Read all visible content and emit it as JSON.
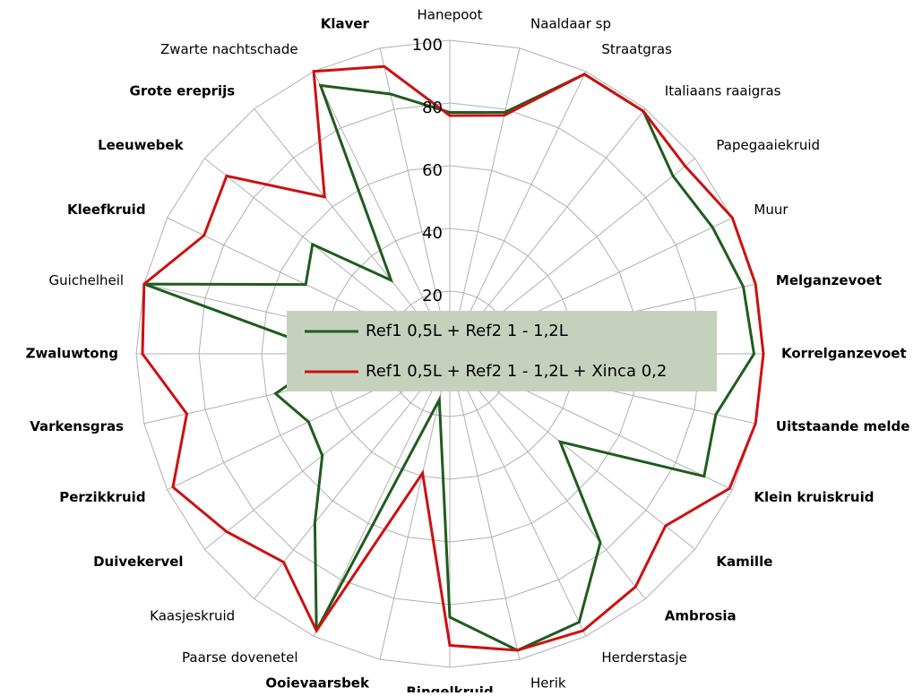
{
  "chart_data": {
    "type": "radar",
    "categories": [
      "Hanepoot",
      "Naaldaar sp",
      "Straatgras",
      "Italiaans raaigras",
      "Papegaaiekruid",
      "Muur",
      "Melganzevoet",
      "Korrelganzevoet",
      "Uitstaande melde",
      "Klein kruiskruid",
      "Kamille",
      "Ambrosia",
      "Herderstasje",
      "Herik",
      "Bingelkruid",
      "Ooievaarsbek",
      "Paarse dovenetel",
      "Kaasjeskruid",
      "Duivekervel",
      "Perzikkruid",
      "Varkensgras",
      "Zwaluwtong",
      "Guichelheil",
      "Kleefkruid",
      "Leeuwebek",
      "Grote ereprijs",
      "Zwarte nachtschade",
      "Klaver"
    ],
    "label_bold": [
      false,
      false,
      false,
      false,
      false,
      false,
      true,
      true,
      true,
      true,
      true,
      true,
      false,
      false,
      true,
      true,
      false,
      false,
      true,
      true,
      true,
      true,
      false,
      true,
      true,
      true,
      false,
      true
    ],
    "series": [
      {
        "name": "Ref1 0,5L  + Ref2 1 - 1,2L",
        "color": "#1e5c1e",
        "values": [
          77,
          79,
          99,
          99,
          91,
          93,
          96,
          97,
          87,
          90,
          45,
          77,
          95,
          97,
          84,
          15,
          98,
          69,
          52,
          50,
          57,
          37,
          100,
          51,
          56,
          30,
          95,
          85
        ]
      },
      {
        "name": "Ref1 0,5L  + Ref2 1 - 1,2L + Xinca 0,2",
        "color": "#cc1111",
        "values": [
          76,
          78,
          99,
          99,
          96,
          100,
          100,
          100,
          100,
          99,
          88,
          95,
          98,
          97,
          93,
          39,
          98,
          85,
          91,
          98,
          86,
          98,
          100,
          87,
          91,
          64,
          100,
          94
        ]
      }
    ],
    "ylim": [
      0,
      100
    ],
    "yticks": [
      20,
      40,
      60,
      80,
      100
    ],
    "grid": true,
    "legend": "center"
  }
}
